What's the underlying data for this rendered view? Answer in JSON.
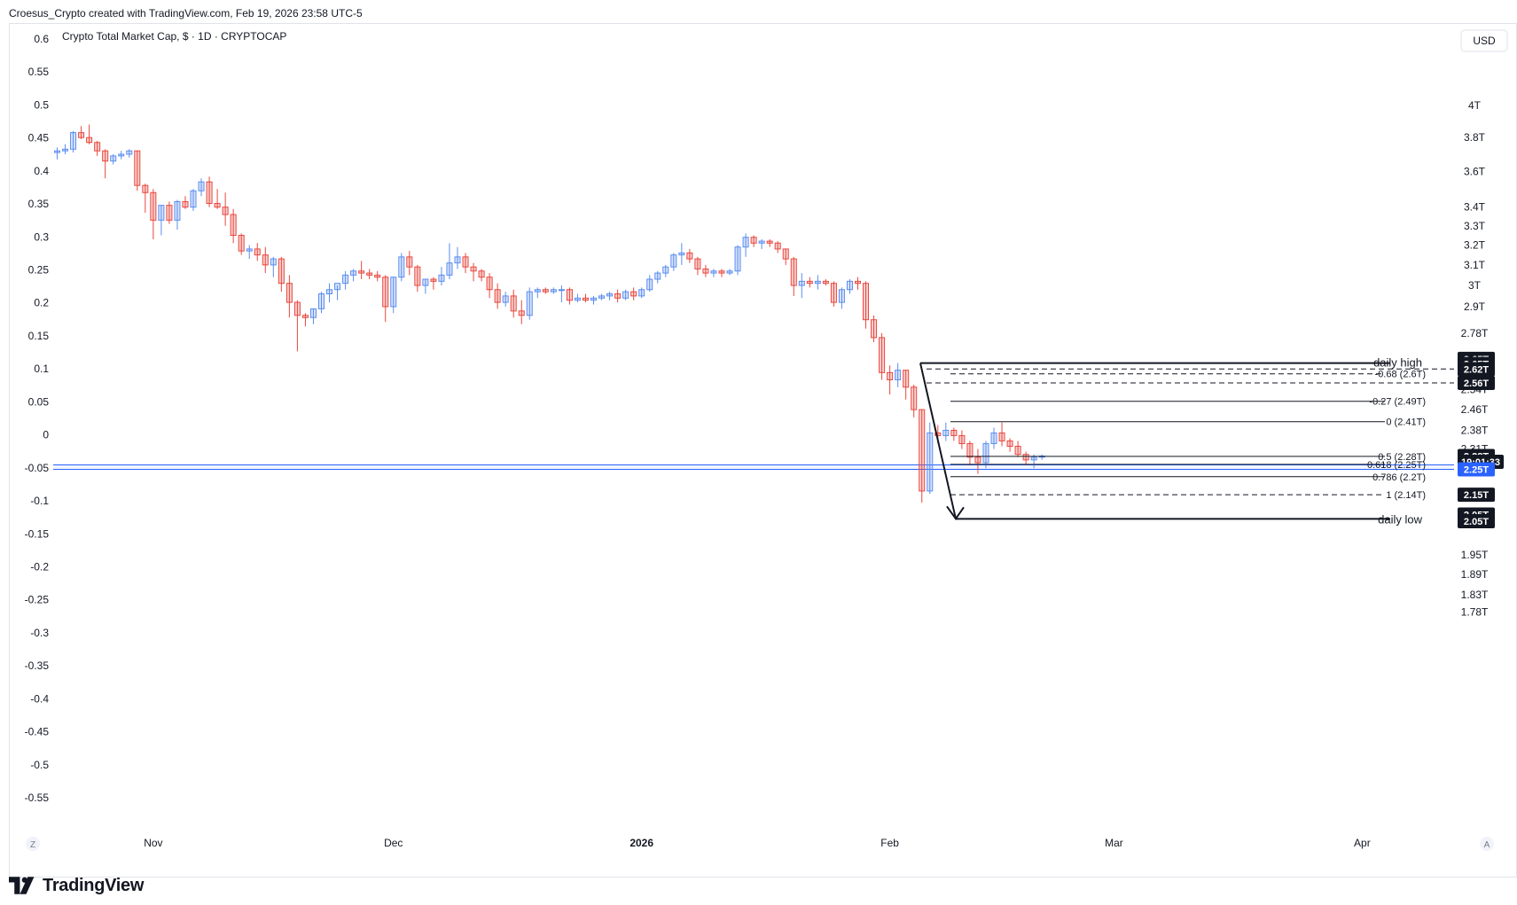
{
  "header": {
    "note": "Croesus_Crypto created with TradingView.com, Feb 19, 2026 23:58 UTC-5"
  },
  "brand": {
    "name": "TradingView",
    "logo": "tradingview-logo-icon"
  },
  "controls": {
    "currency": "USD",
    "left_corner": "Z",
    "right_corner": "A"
  },
  "chart_data": {
    "type": "candlestick",
    "title": "Crypto Total Market Cap, $ · 1D · CRYPTOCAP",
    "colors": {
      "up": "#5b8def",
      "down": "#e8473e",
      "line": "#131722",
      "band": "#2962ff"
    },
    "left_axis": {
      "range": [
        -0.58,
        0.62
      ],
      "ticks": [
        "0.6",
        "0.55",
        "0.5",
        "0.45",
        "0.4",
        "0.35",
        "0.3",
        "0.25",
        "0.2",
        "0.15",
        "0.1",
        "0.05",
        "0",
        "-0.05",
        "-0.1",
        "-0.15",
        "-0.2",
        "-0.25",
        "-0.3",
        "-0.35",
        "-0.4",
        "-0.45",
        "-0.5",
        "-0.55"
      ]
    },
    "right_axis": {
      "scale": "log",
      "currency": "USD",
      "ticks": [
        {
          "label": "4T",
          "v": 4.0
        },
        {
          "label": "3.8T",
          "v": 3.8
        },
        {
          "label": "3.6T",
          "v": 3.6
        },
        {
          "label": "3.4T",
          "v": 3.4
        },
        {
          "label": "3.3T",
          "v": 3.3
        },
        {
          "label": "3.2T",
          "v": 3.2
        },
        {
          "label": "3.1T",
          "v": 3.1
        },
        {
          "label": "3T",
          "v": 3.0
        },
        {
          "label": "2.9T",
          "v": 2.9
        },
        {
          "label": "2.78T",
          "v": 2.78
        },
        {
          "label": "2.54T",
          "v": 2.54
        },
        {
          "label": "2.46T",
          "v": 2.46
        },
        {
          "label": "2.38T",
          "v": 2.38
        },
        {
          "label": "2.31T",
          "v": 2.31
        },
        {
          "label": "2.07T",
          "v": 2.07
        },
        {
          "label": "1.95T",
          "v": 1.95
        },
        {
          "label": "1.89T",
          "v": 1.89
        },
        {
          "label": "1.83T",
          "v": 1.83
        },
        {
          "label": "1.78T",
          "v": 1.78
        }
      ],
      "labels": [
        {
          "text": "2.65T",
          "v": 2.668,
          "style": "dark"
        },
        {
          "text": "2.65T",
          "v": 2.646,
          "style": "dark"
        },
        {
          "text": "2.62T",
          "v": 2.624,
          "style": "dark"
        },
        {
          "text": "2.56T",
          "v": 2.567,
          "style": "dark"
        },
        {
          "text": "2.28T",
          "v": 2.284,
          "style": "dark"
        },
        {
          "text": "19:01:33",
          "v": 2.263,
          "style": "dark"
        },
        {
          "text": "2.25T",
          "v": 2.236,
          "style": "blue"
        },
        {
          "text": "2.15T",
          "v": 2.147,
          "style": "dark"
        },
        {
          "text": "2.05T",
          "v": 2.08,
          "style": "dark"
        },
        {
          "text": "2.05T",
          "v": 2.058,
          "style": "dark"
        }
      ]
    },
    "x_labels": [
      {
        "label": "Nov",
        "day": "2025-11-01",
        "bold": false
      },
      {
        "label": "Dec",
        "day": "2025-12-01",
        "bold": false
      },
      {
        "label": "2026",
        "day": "2026-01-01",
        "bold": true
      },
      {
        "label": "Feb",
        "day": "2026-02-01",
        "bold": false
      },
      {
        "label": "Mar",
        "day": "2026-03-01",
        "bold": false
      },
      {
        "label": "Apr",
        "day": "2026-04-01",
        "bold": false
      }
    ],
    "x_range": [
      "2025-10-19",
      "2026-04-16"
    ],
    "candles": [
      {
        "d": "2025-10-20",
        "o": 3.71,
        "h": 3.74,
        "l": 3.67,
        "c": 3.72
      },
      {
        "d": "2025-10-21",
        "o": 3.72,
        "h": 3.76,
        "l": 3.7,
        "c": 3.73
      },
      {
        "d": "2025-10-22",
        "o": 3.73,
        "h": 3.84,
        "l": 3.71,
        "c": 3.83
      },
      {
        "d": "2025-10-23",
        "o": 3.83,
        "h": 3.87,
        "l": 3.79,
        "c": 3.8
      },
      {
        "d": "2025-10-24",
        "o": 3.8,
        "h": 3.88,
        "l": 3.76,
        "c": 3.77
      },
      {
        "d": "2025-10-25",
        "o": 3.77,
        "h": 3.78,
        "l": 3.69,
        "c": 3.72
      },
      {
        "d": "2025-10-26",
        "o": 3.72,
        "h": 3.73,
        "l": 3.56,
        "c": 3.66
      },
      {
        "d": "2025-10-27",
        "o": 3.66,
        "h": 3.7,
        "l": 3.64,
        "c": 3.69
      },
      {
        "d": "2025-10-28",
        "o": 3.69,
        "h": 3.72,
        "l": 3.67,
        "c": 3.7
      },
      {
        "d": "2025-10-29",
        "o": 3.7,
        "h": 3.73,
        "l": 3.68,
        "c": 3.72
      },
      {
        "d": "2025-10-30",
        "o": 3.72,
        "h": 3.72,
        "l": 3.49,
        "c": 3.52
      },
      {
        "d": "2025-10-31",
        "o": 3.52,
        "h": 3.53,
        "l": 3.37,
        "c": 3.48
      },
      {
        "d": "2025-11-01",
        "o": 3.48,
        "h": 3.5,
        "l": 3.23,
        "c": 3.33
      },
      {
        "d": "2025-11-02",
        "o": 3.33,
        "h": 3.41,
        "l": 3.25,
        "c": 3.41
      },
      {
        "d": "2025-11-03",
        "o": 3.41,
        "h": 3.43,
        "l": 3.31,
        "c": 3.33
      },
      {
        "d": "2025-11-04",
        "o": 3.33,
        "h": 3.44,
        "l": 3.28,
        "c": 3.43
      },
      {
        "d": "2025-11-05",
        "o": 3.43,
        "h": 3.46,
        "l": 3.39,
        "c": 3.4
      },
      {
        "d": "2025-11-06",
        "o": 3.4,
        "h": 3.5,
        "l": 3.38,
        "c": 3.49
      },
      {
        "d": "2025-11-07",
        "o": 3.49,
        "h": 3.56,
        "l": 3.46,
        "c": 3.54
      },
      {
        "d": "2025-11-08",
        "o": 3.54,
        "h": 3.57,
        "l": 3.4,
        "c": 3.42
      },
      {
        "d": "2025-11-09",
        "o": 3.42,
        "h": 3.5,
        "l": 3.39,
        "c": 3.4
      },
      {
        "d": "2025-11-10",
        "o": 3.4,
        "h": 3.48,
        "l": 3.3,
        "c": 3.36
      },
      {
        "d": "2025-11-11",
        "o": 3.36,
        "h": 3.39,
        "l": 3.21,
        "c": 3.25
      },
      {
        "d": "2025-11-12",
        "o": 3.25,
        "h": 3.26,
        "l": 3.15,
        "c": 3.17
      },
      {
        "d": "2025-11-13",
        "o": 3.17,
        "h": 3.2,
        "l": 3.13,
        "c": 3.18
      },
      {
        "d": "2025-11-14",
        "o": 3.18,
        "h": 3.21,
        "l": 3.12,
        "c": 3.15
      },
      {
        "d": "2025-11-15",
        "o": 3.15,
        "h": 3.19,
        "l": 3.06,
        "c": 3.1
      },
      {
        "d": "2025-11-16",
        "o": 3.1,
        "h": 3.14,
        "l": 3.04,
        "c": 3.13
      },
      {
        "d": "2025-11-17",
        "o": 3.13,
        "h": 3.14,
        "l": 2.97,
        "c": 3.01
      },
      {
        "d": "2025-11-18",
        "o": 3.01,
        "h": 3.05,
        "l": 2.85,
        "c": 2.92
      },
      {
        "d": "2025-11-19",
        "o": 2.92,
        "h": 2.93,
        "l": 2.7,
        "c": 2.86
      },
      {
        "d": "2025-11-20",
        "o": 2.86,
        "h": 2.87,
        "l": 2.81,
        "c": 2.85
      },
      {
        "d": "2025-11-21",
        "o": 2.85,
        "h": 2.89,
        "l": 2.82,
        "c": 2.89
      },
      {
        "d": "2025-11-22",
        "o": 2.89,
        "h": 2.97,
        "l": 2.87,
        "c": 2.96
      },
      {
        "d": "2025-11-23",
        "o": 2.96,
        "h": 3.01,
        "l": 2.92,
        "c": 2.98
      },
      {
        "d": "2025-11-24",
        "o": 2.98,
        "h": 3.0,
        "l": 2.93,
        "c": 3.01
      },
      {
        "d": "2025-11-25",
        "o": 3.01,
        "h": 3.07,
        "l": 2.98,
        "c": 3.05
      },
      {
        "d": "2025-11-26",
        "o": 3.05,
        "h": 3.08,
        "l": 3.02,
        "c": 3.07
      },
      {
        "d": "2025-11-27",
        "o": 3.07,
        "h": 3.12,
        "l": 3.03,
        "c": 3.06
      },
      {
        "d": "2025-11-28",
        "o": 3.06,
        "h": 3.08,
        "l": 3.03,
        "c": 3.05
      },
      {
        "d": "2025-11-29",
        "o": 3.05,
        "h": 3.07,
        "l": 3.02,
        "c": 3.04
      },
      {
        "d": "2025-11-30",
        "o": 3.04,
        "h": 3.05,
        "l": 2.83,
        "c": 2.9
      },
      {
        "d": "2025-12-01",
        "o": 2.9,
        "h": 3.04,
        "l": 2.87,
        "c": 3.04
      },
      {
        "d": "2025-12-02",
        "o": 3.04,
        "h": 3.16,
        "l": 3.02,
        "c": 3.14
      },
      {
        "d": "2025-12-03",
        "o": 3.14,
        "h": 3.17,
        "l": 3.05,
        "c": 3.09
      },
      {
        "d": "2025-12-04",
        "o": 3.09,
        "h": 3.1,
        "l": 2.97,
        "c": 3.0
      },
      {
        "d": "2025-12-05",
        "o": 3.0,
        "h": 3.03,
        "l": 2.96,
        "c": 3.03
      },
      {
        "d": "2025-12-06",
        "o": 3.03,
        "h": 3.04,
        "l": 2.98,
        "c": 3.02
      },
      {
        "d": "2025-12-07",
        "o": 3.02,
        "h": 3.09,
        "l": 3.0,
        "c": 3.05
      },
      {
        "d": "2025-12-08",
        "o": 3.05,
        "h": 3.21,
        "l": 3.03,
        "c": 3.11
      },
      {
        "d": "2025-12-09",
        "o": 3.11,
        "h": 3.19,
        "l": 3.08,
        "c": 3.14
      },
      {
        "d": "2025-12-10",
        "o": 3.14,
        "h": 3.16,
        "l": 3.06,
        "c": 3.09
      },
      {
        "d": "2025-12-11",
        "o": 3.09,
        "h": 3.11,
        "l": 3.02,
        "c": 3.07
      },
      {
        "d": "2025-12-12",
        "o": 3.07,
        "h": 3.08,
        "l": 3.02,
        "c": 3.04
      },
      {
        "d": "2025-12-13",
        "o": 3.04,
        "h": 3.06,
        "l": 2.94,
        "c": 2.98
      },
      {
        "d": "2025-12-14",
        "o": 2.98,
        "h": 3.01,
        "l": 2.89,
        "c": 2.92
      },
      {
        "d": "2025-12-15",
        "o": 2.92,
        "h": 2.97,
        "l": 2.9,
        "c": 2.95
      },
      {
        "d": "2025-12-16",
        "o": 2.95,
        "h": 2.98,
        "l": 2.85,
        "c": 2.88
      },
      {
        "d": "2025-12-17",
        "o": 2.88,
        "h": 2.93,
        "l": 2.82,
        "c": 2.86
      },
      {
        "d": "2025-12-18",
        "o": 2.86,
        "h": 2.99,
        "l": 2.84,
        "c": 2.97
      },
      {
        "d": "2025-12-19",
        "o": 2.97,
        "h": 2.99,
        "l": 2.94,
        "c": 2.98
      },
      {
        "d": "2025-12-20",
        "o": 2.98,
        "h": 2.99,
        "l": 2.96,
        "c": 2.97
      },
      {
        "d": "2025-12-21",
        "o": 2.97,
        "h": 2.99,
        "l": 2.96,
        "c": 2.98
      },
      {
        "d": "2025-12-22",
        "o": 2.98,
        "h": 3.0,
        "l": 2.92,
        "c": 2.98
      },
      {
        "d": "2025-12-23",
        "o": 2.98,
        "h": 2.99,
        "l": 2.91,
        "c": 2.93
      },
      {
        "d": "2025-12-24",
        "o": 2.93,
        "h": 2.96,
        "l": 2.92,
        "c": 2.94
      },
      {
        "d": "2025-12-25",
        "o": 2.94,
        "h": 2.96,
        "l": 2.92,
        "c": 2.93
      },
      {
        "d": "2025-12-26",
        "o": 2.93,
        "h": 2.95,
        "l": 2.91,
        "c": 2.94
      },
      {
        "d": "2025-12-27",
        "o": 2.94,
        "h": 2.96,
        "l": 2.93,
        "c": 2.95
      },
      {
        "d": "2025-12-28",
        "o": 2.95,
        "h": 2.97,
        "l": 2.93,
        "c": 2.96
      },
      {
        "d": "2025-12-29",
        "o": 2.96,
        "h": 2.98,
        "l": 2.92,
        "c": 2.94
      },
      {
        "d": "2025-12-30",
        "o": 2.94,
        "h": 2.98,
        "l": 2.93,
        "c": 2.97
      },
      {
        "d": "2025-12-31",
        "o": 2.97,
        "h": 2.99,
        "l": 2.93,
        "c": 2.95
      },
      {
        "d": "2026-01-01",
        "o": 2.95,
        "h": 2.99,
        "l": 2.94,
        "c": 2.98
      },
      {
        "d": "2026-01-02",
        "o": 2.98,
        "h": 3.05,
        "l": 2.97,
        "c": 3.03
      },
      {
        "d": "2026-01-03",
        "o": 3.03,
        "h": 3.07,
        "l": 3.01,
        "c": 3.06
      },
      {
        "d": "2026-01-04",
        "o": 3.06,
        "h": 3.1,
        "l": 3.04,
        "c": 3.09
      },
      {
        "d": "2026-01-05",
        "o": 3.09,
        "h": 3.16,
        "l": 3.07,
        "c": 3.15
      },
      {
        "d": "2026-01-06",
        "o": 3.15,
        "h": 3.21,
        "l": 3.1,
        "c": 3.16
      },
      {
        "d": "2026-01-07",
        "o": 3.16,
        "h": 3.18,
        "l": 3.11,
        "c": 3.13
      },
      {
        "d": "2026-01-08",
        "o": 3.13,
        "h": 3.14,
        "l": 3.05,
        "c": 3.08
      },
      {
        "d": "2026-01-09",
        "o": 3.08,
        "h": 3.1,
        "l": 3.04,
        "c": 3.06
      },
      {
        "d": "2026-01-10",
        "o": 3.06,
        "h": 3.08,
        "l": 3.04,
        "c": 3.07
      },
      {
        "d": "2026-01-11",
        "o": 3.07,
        "h": 3.08,
        "l": 3.04,
        "c": 3.06
      },
      {
        "d": "2026-01-12",
        "o": 3.06,
        "h": 3.08,
        "l": 3.05,
        "c": 3.07
      },
      {
        "d": "2026-01-13",
        "o": 3.07,
        "h": 3.2,
        "l": 3.05,
        "c": 3.19
      },
      {
        "d": "2026-01-14",
        "o": 3.19,
        "h": 3.26,
        "l": 3.14,
        "c": 3.24
      },
      {
        "d": "2026-01-15",
        "o": 3.24,
        "h": 3.25,
        "l": 3.19,
        "c": 3.21
      },
      {
        "d": "2026-01-16",
        "o": 3.21,
        "h": 3.23,
        "l": 3.18,
        "c": 3.22
      },
      {
        "d": "2026-01-17",
        "o": 3.22,
        "h": 3.23,
        "l": 3.19,
        "c": 3.21
      },
      {
        "d": "2026-01-18",
        "o": 3.21,
        "h": 3.22,
        "l": 3.16,
        "c": 3.18
      },
      {
        "d": "2026-01-19",
        "o": 3.18,
        "h": 3.18,
        "l": 3.1,
        "c": 3.13
      },
      {
        "d": "2026-01-20",
        "o": 3.13,
        "h": 3.14,
        "l": 2.95,
        "c": 3.0
      },
      {
        "d": "2026-01-21",
        "o": 3.0,
        "h": 3.06,
        "l": 2.94,
        "c": 3.02
      },
      {
        "d": "2026-01-22",
        "o": 3.02,
        "h": 3.04,
        "l": 2.99,
        "c": 3.01
      },
      {
        "d": "2026-01-23",
        "o": 3.01,
        "h": 3.05,
        "l": 2.98,
        "c": 3.02
      },
      {
        "d": "2026-01-24",
        "o": 3.02,
        "h": 3.03,
        "l": 3.0,
        "c": 3.01
      },
      {
        "d": "2026-01-25",
        "o": 3.01,
        "h": 3.02,
        "l": 2.9,
        "c": 2.92
      },
      {
        "d": "2026-01-26",
        "o": 2.92,
        "h": 2.99,
        "l": 2.89,
        "c": 2.98
      },
      {
        "d": "2026-01-27",
        "o": 2.98,
        "h": 3.03,
        "l": 2.96,
        "c": 3.02
      },
      {
        "d": "2026-01-28",
        "o": 3.02,
        "h": 3.04,
        "l": 2.98,
        "c": 3.01
      },
      {
        "d": "2026-01-29",
        "o": 3.01,
        "h": 3.02,
        "l": 2.8,
        "c": 2.84
      },
      {
        "d": "2026-01-30",
        "o": 2.84,
        "h": 2.86,
        "l": 2.74,
        "c": 2.76
      },
      {
        "d": "2026-01-31",
        "o": 2.76,
        "h": 2.78,
        "l": 2.58,
        "c": 2.61
      },
      {
        "d": "2026-02-01",
        "o": 2.61,
        "h": 2.64,
        "l": 2.52,
        "c": 2.58
      },
      {
        "d": "2026-02-02",
        "o": 2.58,
        "h": 2.65,
        "l": 2.55,
        "c": 2.62
      },
      {
        "d": "2026-02-03",
        "o": 2.62,
        "h": 2.62,
        "l": 2.5,
        "c": 2.55
      },
      {
        "d": "2026-02-04",
        "o": 2.55,
        "h": 2.56,
        "l": 2.43,
        "c": 2.46
      },
      {
        "d": "2026-02-05",
        "o": 2.46,
        "h": 2.46,
        "l": 2.12,
        "c": 2.16
      },
      {
        "d": "2026-02-06",
        "o": 2.16,
        "h": 2.41,
        "l": 2.15,
        "c": 2.37
      },
      {
        "d": "2026-02-07",
        "o": 2.37,
        "h": 2.4,
        "l": 2.33,
        "c": 2.36
      },
      {
        "d": "2026-02-08",
        "o": 2.36,
        "h": 2.41,
        "l": 2.34,
        "c": 2.38
      },
      {
        "d": "2026-02-09",
        "o": 2.38,
        "h": 2.39,
        "l": 2.34,
        "c": 2.36
      },
      {
        "d": "2026-02-10",
        "o": 2.36,
        "h": 2.38,
        "l": 2.31,
        "c": 2.33
      },
      {
        "d": "2026-02-11",
        "o": 2.33,
        "h": 2.34,
        "l": 2.25,
        "c": 2.28
      },
      {
        "d": "2026-02-12",
        "o": 2.28,
        "h": 2.31,
        "l": 2.22,
        "c": 2.26
      },
      {
        "d": "2026-02-13",
        "o": 2.26,
        "h": 2.34,
        "l": 2.24,
        "c": 2.33
      },
      {
        "d": "2026-02-14",
        "o": 2.33,
        "h": 2.39,
        "l": 2.31,
        "c": 2.37
      },
      {
        "d": "2026-02-15",
        "o": 2.37,
        "h": 2.41,
        "l": 2.32,
        "c": 2.34
      },
      {
        "d": "2026-02-16",
        "o": 2.34,
        "h": 2.35,
        "l": 2.3,
        "c": 2.32
      },
      {
        "d": "2026-02-17",
        "o": 2.32,
        "h": 2.34,
        "l": 2.28,
        "c": 2.29
      },
      {
        "d": "2026-02-18",
        "o": 2.29,
        "h": 2.3,
        "l": 2.25,
        "c": 2.27
      },
      {
        "d": "2026-02-19",
        "o": 2.27,
        "h": 2.29,
        "l": 2.24,
        "c": 2.28
      },
      {
        "d": "2026-02-20",
        "o": 2.28,
        "h": 2.29,
        "l": 2.27,
        "c": 2.284
      }
    ],
    "horizontal_band": {
      "from": 2.236,
      "to": 2.252
    },
    "fib_levels": [
      {
        "label": "-0.68 (2.6T)",
        "v": 2.605,
        "style": "dashed"
      },
      {
        "label": "-0.27 (2.49T)",
        "v": 2.493,
        "style": "solid"
      },
      {
        "label": "0 (2.41T)",
        "v": 2.413,
        "style": "solid"
      },
      {
        "label": "0.5 (2.28T)",
        "v": 2.283,
        "style": "solid"
      },
      {
        "label": "0.618 (2.25T)",
        "v": 2.254,
        "style": "solid"
      },
      {
        "label": "0.786 (2.2T)",
        "v": 2.21,
        "style": "solid"
      },
      {
        "label": "1 (2.14T)",
        "v": 2.147,
        "style": "dashed"
      }
    ],
    "extra_dashed": [
      2.625,
      2.567
    ],
    "annotations": [
      {
        "text": "daily high",
        "v": 2.65
      },
      {
        "text": "daily low",
        "v": 2.066
      }
    ]
  }
}
